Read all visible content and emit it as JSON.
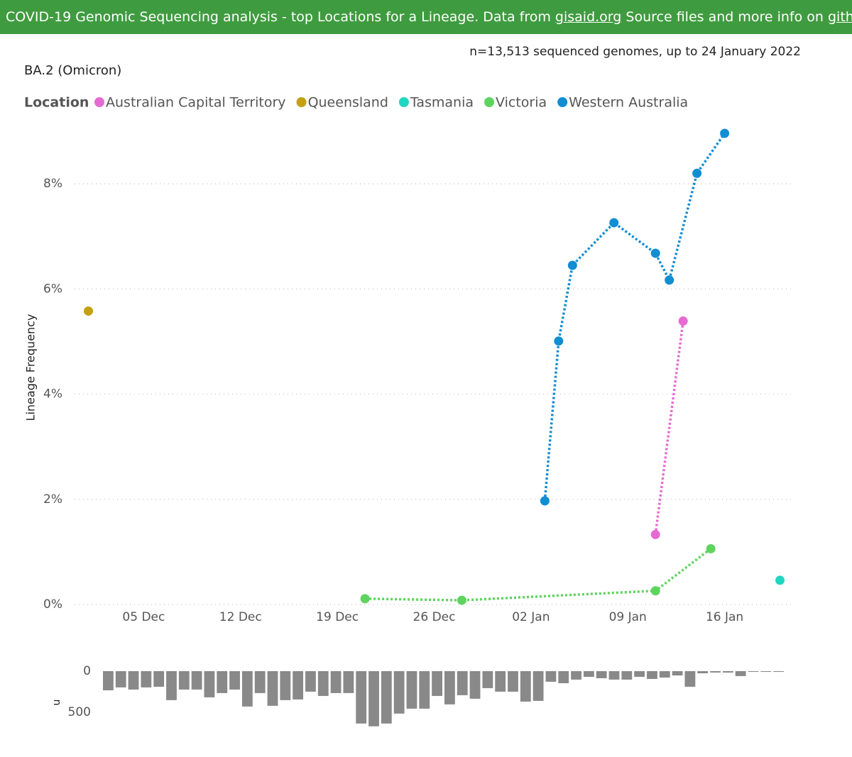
{
  "header": {
    "text_before": "COVID-19 Genomic Sequencing analysis - top Locations for a Lineage. Data from ",
    "link1": "gisaid.org",
    "text_middle": " Source files and more info on ",
    "link2": "github",
    "text_after": "."
  },
  "chart_data": [
    {
      "type": "line",
      "title": "BA.2 (Omicron)",
      "annotation": "n=13,513 sequenced genomes, up to 24 January 2022",
      "y_label": "Lineage Frequency",
      "legend_title": "Location",
      "xlim": [
        "30 Nov",
        "21 Jan"
      ],
      "xticks": [
        "05 Dec",
        "12 Dec",
        "19 Dec",
        "26 Dec",
        "02 Jan",
        "09 Jan",
        "16 Jan"
      ],
      "ylim": [
        0,
        9
      ],
      "yticks": [
        {
          "value": 0,
          "label": "0%"
        },
        {
          "value": 2,
          "label": "2%"
        },
        {
          "value": 4,
          "label": "4%"
        },
        {
          "value": 6,
          "label": "6%"
        },
        {
          "value": 8,
          "label": "8%"
        }
      ],
      "grid": true,
      "series": [
        {
          "name": "Australian Capital Territory",
          "color": "#e66ad2",
          "x": [
            "11 Jan",
            "13 Jan"
          ],
          "values": [
            1.33,
            5.39
          ]
        },
        {
          "name": "Queensland",
          "color": "#c4a00f",
          "x": [
            "01 Dec"
          ],
          "values": [
            5.58
          ]
        },
        {
          "name": "Tasmania",
          "color": "#1fd7c1",
          "x": [
            "20 Jan"
          ],
          "values": [
            0.46
          ]
        },
        {
          "name": "Victoria",
          "color": "#5ed45e",
          "x": [
            "21 Dec",
            "28 Dec",
            "11 Jan",
            "15 Jan"
          ],
          "values": [
            0.11,
            0.08,
            0.26,
            1.06
          ]
        },
        {
          "name": "Western Australia",
          "color": "#118dd2",
          "x": [
            "03 Jan",
            "04 Jan",
            "05 Jan",
            "08 Jan",
            "11 Jan",
            "12 Jan",
            "14 Jan",
            "16 Jan"
          ],
          "values": [
            1.97,
            5.01,
            6.45,
            7.26,
            6.68,
            6.17,
            8.2,
            8.96
          ]
        }
      ]
    },
    {
      "type": "bar",
      "y_label": "n",
      "color": "#898989",
      "y_inverted": true,
      "ylim": [
        0,
        700
      ],
      "yticks": [
        0,
        500
      ],
      "values": [
        233,
        198,
        224,
        198,
        190,
        353,
        224,
        224,
        319,
        267,
        224,
        431,
        267,
        422,
        353,
        345,
        250,
        302,
        267,
        267,
        638,
        672,
        638,
        517,
        457,
        457,
        302,
        405,
        293,
        336,
        207,
        250,
        250,
        371,
        362,
        129,
        147,
        103,
        69,
        86,
        103,
        103,
        69,
        95,
        78,
        52,
        190,
        26,
        17,
        17,
        60,
        9,
        9,
        9
      ]
    }
  ]
}
